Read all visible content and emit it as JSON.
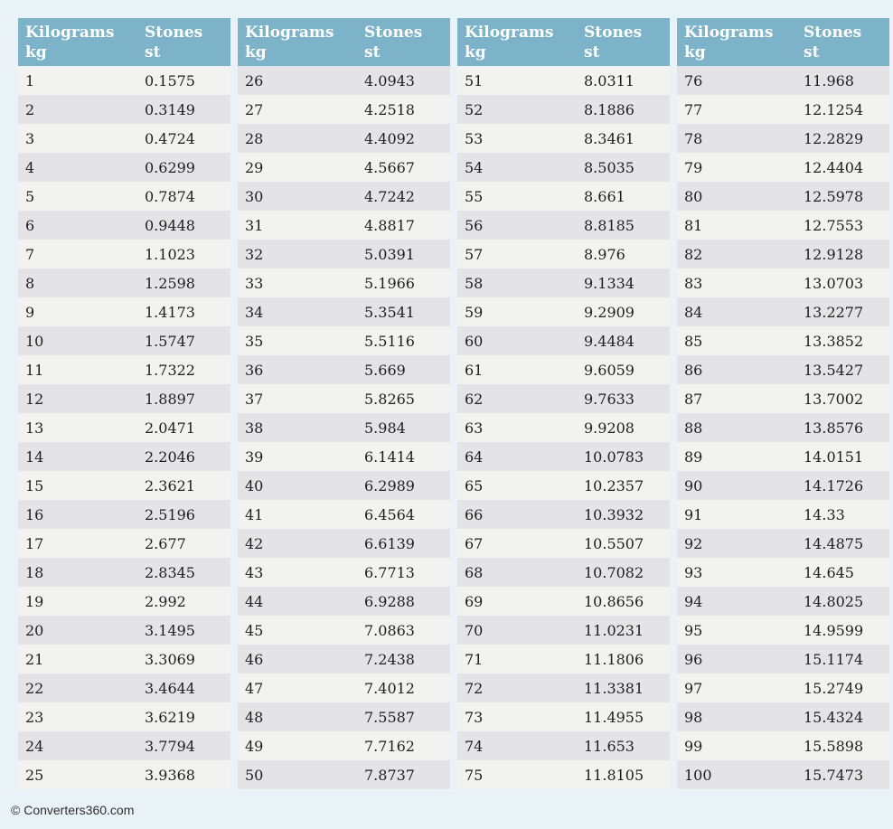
{
  "labels": {
    "kilograms": "Kilograms",
    "kg_unit": "kg",
    "stones": "Stones",
    "st_unit": "st"
  },
  "colors": {
    "page_background": "#e9f2f7",
    "header_background": "#7cb3c8",
    "header_text": "#ffffff",
    "row_odd": "#f2f2f0",
    "row_even": "#e4e4e7",
    "row_text": "#1e1e1e",
    "footer_text": "#2f2f2f"
  },
  "footer": {
    "copyright": "© Converters360.com"
  },
  "tables": [
    {
      "rows": [
        {
          "kg": "1",
          "st": "0.1575"
        },
        {
          "kg": "2",
          "st": "0.3149"
        },
        {
          "kg": "3",
          "st": "0.4724"
        },
        {
          "kg": "4",
          "st": "0.6299"
        },
        {
          "kg": "5",
          "st": "0.7874"
        },
        {
          "kg": "6",
          "st": "0.9448"
        },
        {
          "kg": "7",
          "st": "1.1023"
        },
        {
          "kg": "8",
          "st": "1.2598"
        },
        {
          "kg": "9",
          "st": "1.4173"
        },
        {
          "kg": "10",
          "st": "1.5747"
        },
        {
          "kg": "11",
          "st": "1.7322"
        },
        {
          "kg": "12",
          "st": "1.8897"
        },
        {
          "kg": "13",
          "st": "2.0471"
        },
        {
          "kg": "14",
          "st": "2.2046"
        },
        {
          "kg": "15",
          "st": "2.3621"
        },
        {
          "kg": "16",
          "st": "2.5196"
        },
        {
          "kg": "17",
          "st": "2.677"
        },
        {
          "kg": "18",
          "st": "2.8345"
        },
        {
          "kg": "19",
          "st": "2.992"
        },
        {
          "kg": "20",
          "st": "3.1495"
        },
        {
          "kg": "21",
          "st": "3.3069"
        },
        {
          "kg": "22",
          "st": "3.4644"
        },
        {
          "kg": "23",
          "st": "3.6219"
        },
        {
          "kg": "24",
          "st": "3.7794"
        },
        {
          "kg": "25",
          "st": "3.9368"
        }
      ]
    },
    {
      "rows": [
        {
          "kg": "26",
          "st": "4.0943"
        },
        {
          "kg": "27",
          "st": "4.2518"
        },
        {
          "kg": "28",
          "st": "4.4092"
        },
        {
          "kg": "29",
          "st": "4.5667"
        },
        {
          "kg": "30",
          "st": "4.7242"
        },
        {
          "kg": "31",
          "st": "4.8817"
        },
        {
          "kg": "32",
          "st": "5.0391"
        },
        {
          "kg": "33",
          "st": "5.1966"
        },
        {
          "kg": "34",
          "st": "5.3541"
        },
        {
          "kg": "35",
          "st": "5.5116"
        },
        {
          "kg": "36",
          "st": "5.669"
        },
        {
          "kg": "37",
          "st": "5.8265"
        },
        {
          "kg": "38",
          "st": "5.984"
        },
        {
          "kg": "39",
          "st": "6.1414"
        },
        {
          "kg": "40",
          "st": "6.2989"
        },
        {
          "kg": "41",
          "st": "6.4564"
        },
        {
          "kg": "42",
          "st": "6.6139"
        },
        {
          "kg": "43",
          "st": "6.7713"
        },
        {
          "kg": "44",
          "st": "6.9288"
        },
        {
          "kg": "45",
          "st": "7.0863"
        },
        {
          "kg": "46",
          "st": "7.2438"
        },
        {
          "kg": "47",
          "st": "7.4012"
        },
        {
          "kg": "48",
          "st": "7.5587"
        },
        {
          "kg": "49",
          "st": "7.7162"
        },
        {
          "kg": "50",
          "st": "7.8737"
        }
      ]
    },
    {
      "rows": [
        {
          "kg": "51",
          "st": "8.0311"
        },
        {
          "kg": "52",
          "st": "8.1886"
        },
        {
          "kg": "53",
          "st": "8.3461"
        },
        {
          "kg": "54",
          "st": "8.5035"
        },
        {
          "kg": "55",
          "st": "8.661"
        },
        {
          "kg": "56",
          "st": "8.8185"
        },
        {
          "kg": "57",
          "st": "8.976"
        },
        {
          "kg": "58",
          "st": "9.1334"
        },
        {
          "kg": "59",
          "st": "9.2909"
        },
        {
          "kg": "60",
          "st": "9.4484"
        },
        {
          "kg": "61",
          "st": "9.6059"
        },
        {
          "kg": "62",
          "st": "9.7633"
        },
        {
          "kg": "63",
          "st": "9.9208"
        },
        {
          "kg": "64",
          "st": "10.0783"
        },
        {
          "kg": "65",
          "st": "10.2357"
        },
        {
          "kg": "66",
          "st": "10.3932"
        },
        {
          "kg": "67",
          "st": "10.5507"
        },
        {
          "kg": "68",
          "st": "10.7082"
        },
        {
          "kg": "69",
          "st": "10.8656"
        },
        {
          "kg": "70",
          "st": "11.0231"
        },
        {
          "kg": "71",
          "st": "11.1806"
        },
        {
          "kg": "72",
          "st": "11.3381"
        },
        {
          "kg": "73",
          "st": "11.4955"
        },
        {
          "kg": "74",
          "st": "11.653"
        },
        {
          "kg": "75",
          "st": "11.8105"
        }
      ]
    },
    {
      "rows": [
        {
          "kg": "76",
          "st": "11.968"
        },
        {
          "kg": "77",
          "st": "12.1254"
        },
        {
          "kg": "78",
          "st": "12.2829"
        },
        {
          "kg": "79",
          "st": "12.4404"
        },
        {
          "kg": "80",
          "st": "12.5978"
        },
        {
          "kg": "81",
          "st": "12.7553"
        },
        {
          "kg": "82",
          "st": "12.9128"
        },
        {
          "kg": "83",
          "st": "13.0703"
        },
        {
          "kg": "84",
          "st": "13.2277"
        },
        {
          "kg": "85",
          "st": "13.3852"
        },
        {
          "kg": "86",
          "st": "13.5427"
        },
        {
          "kg": "87",
          "st": "13.7002"
        },
        {
          "kg": "88",
          "st": "13.8576"
        },
        {
          "kg": "89",
          "st": "14.0151"
        },
        {
          "kg": "90",
          "st": "14.1726"
        },
        {
          "kg": "91",
          "st": "14.33"
        },
        {
          "kg": "92",
          "st": "14.4875"
        },
        {
          "kg": "93",
          "st": "14.645"
        },
        {
          "kg": "94",
          "st": "14.8025"
        },
        {
          "kg": "95",
          "st": "14.9599"
        },
        {
          "kg": "96",
          "st": "15.1174"
        },
        {
          "kg": "97",
          "st": "15.2749"
        },
        {
          "kg": "98",
          "st": "15.4324"
        },
        {
          "kg": "99",
          "st": "15.5898"
        },
        {
          "kg": "100",
          "st": "15.7473"
        }
      ]
    }
  ]
}
